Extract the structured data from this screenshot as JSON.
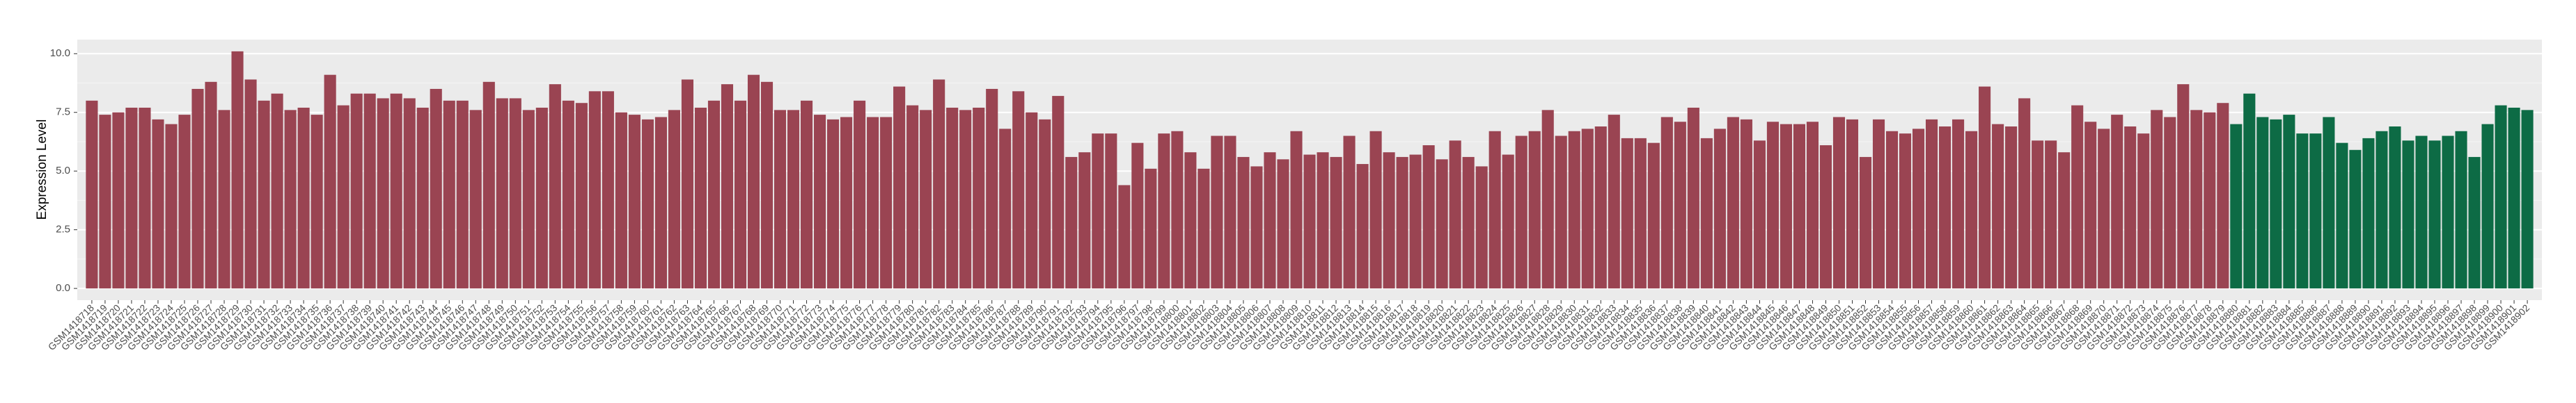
{
  "chart_data": {
    "type": "bar",
    "y_label": "Expression Level",
    "ylim": [
      -0.5,
      10.6
    ],
    "yticks": [
      {
        "value": 0,
        "label": "0.0"
      },
      2.5,
      {
        "value": 5,
        "label": "5.0"
      },
      7.5,
      {
        "value": 10,
        "label": "10.0"
      }
    ],
    "grid": true,
    "series": [
      {
        "color": "#9a4452",
        "categories": [
          "GSM1418718",
          "GSM1418719",
          "GSM1418720",
          "GSM1418721",
          "GSM1418722",
          "GSM1418723",
          "GSM1418724",
          "GSM1418725",
          "GSM1418726",
          "GSM1418727",
          "GSM1418728",
          "GSM1418729",
          "GSM1418730",
          "GSM1418731",
          "GSM1418732",
          "GSM1418733",
          "GSM1418734",
          "GSM1418735",
          "GSM1418736",
          "GSM1418737",
          "GSM1418738",
          "GSM1418739",
          "GSM1418740",
          "GSM1418741",
          "GSM1418742",
          "GSM1418743",
          "GSM1418744",
          "GSM1418745",
          "GSM1418746",
          "GSM1418747",
          "GSM1418748",
          "GSM1418749",
          "GSM1418750",
          "GSM1418751",
          "GSM1418752",
          "GSM1418753",
          "GSM1418754",
          "GSM1418755",
          "GSM1418756",
          "GSM1418757",
          "GSM1418758",
          "GSM1418759",
          "GSM1418760",
          "GSM1418761",
          "GSM1418762",
          "GSM1418763",
          "GSM1418764",
          "GSM1418765",
          "GSM1418766",
          "GSM1418767",
          "GSM1418768",
          "GSM1418769",
          "GSM1418770",
          "GSM1418771",
          "GSM1418772",
          "GSM1418773",
          "GSM1418774",
          "GSM1418775",
          "GSM1418776",
          "GSM1418777",
          "GSM1418778",
          "GSM1418779",
          "GSM1418780",
          "GSM1418781",
          "GSM1418782",
          "GSM1418783",
          "GSM1418784",
          "GSM1418785",
          "GSM1418786",
          "GSM1418787",
          "GSM1418788",
          "GSM1418789",
          "GSM1418790",
          "GSM1418791",
          "GSM1418792",
          "GSM1418793",
          "GSM1418794",
          "GSM1418795",
          "GSM1418796",
          "GSM1418797",
          "GSM1418798",
          "GSM1418799",
          "GSM1418800",
          "GSM1418801",
          "GSM1418802",
          "GSM1418803",
          "GSM1418804",
          "GSM1418805",
          "GSM1418806",
          "GSM1418807",
          "GSM1418808",
          "GSM1418809",
          "GSM1418810",
          "GSM1418811",
          "GSM1418812",
          "GSM1418813",
          "GSM1418814",
          "GSM1418815",
          "GSM1418816",
          "GSM1418817",
          "GSM1418818",
          "GSM1418819",
          "GSM1418820",
          "GSM1418821",
          "GSM1418822",
          "GSM1418823",
          "GSM1418824",
          "GSM1418825",
          "GSM1418826",
          "GSM1418827",
          "GSM1418828",
          "GSM1418829",
          "GSM1418830",
          "GSM1418831",
          "GSM1418832",
          "GSM1418833",
          "GSM1418834",
          "GSM1418835",
          "GSM1418836",
          "GSM1418837",
          "GSM1418838",
          "GSM1418839",
          "GSM1418840",
          "GSM1418841",
          "GSM1418842",
          "GSM1418843",
          "GSM1418844",
          "GSM1418845",
          "GSM1418846",
          "GSM1418847",
          "GSM1418848",
          "GSM1418849",
          "GSM1418850",
          "GSM1418851",
          "GSM1418852",
          "GSM1418853",
          "GSM1418854",
          "GSM1418855",
          "GSM1418856",
          "GSM1418857",
          "GSM1418858",
          "GSM1418859",
          "GSM1418860",
          "GSM1418861",
          "GSM1418862",
          "GSM1418863",
          "GSM1418864",
          "GSM1418865",
          "GSM1418866",
          "GSM1418867",
          "GSM1418868",
          "GSM1418869",
          "GSM1418870",
          "GSM1418871",
          "GSM1418872",
          "GSM1418873",
          "GSM1418874",
          "GSM1418875",
          "GSM1418876",
          "GSM1418877",
          "GSM1418878",
          "GSM1418879"
        ],
        "values": [
          8.0,
          7.4,
          7.5,
          7.7,
          7.7,
          7.2,
          7.0,
          7.4,
          8.5,
          8.8,
          7.6,
          10.1,
          8.9,
          8.0,
          8.3,
          7.6,
          7.7,
          7.4,
          9.1,
          7.8,
          8.3,
          8.3,
          8.1,
          8.3,
          8.1,
          7.7,
          8.5,
          8.0,
          8.0,
          7.6,
          8.8,
          8.1,
          8.1,
          7.6,
          7.7,
          8.7,
          8.0,
          7.9,
          8.4,
          8.4,
          7.5,
          7.4,
          7.2,
          7.3,
          7.6,
          8.9,
          7.7,
          8.0,
          8.7,
          8.0,
          9.1,
          8.8,
          7.6,
          7.6,
          8.0,
          7.4,
          7.2,
          7.3,
          8.0,
          7.3,
          7.3,
          8.6,
          7.8,
          7.6,
          8.9,
          7.7,
          7.6,
          7.7,
          8.5,
          6.8,
          8.4,
          7.5,
          7.2,
          8.2,
          5.6,
          5.8,
          6.6,
          6.6,
          4.4,
          6.2,
          5.1,
          6.6,
          6.7,
          5.8,
          5.1,
          6.5,
          6.5,
          5.6,
          5.2,
          5.8,
          5.5,
          6.7,
          5.7,
          5.8,
          5.6,
          6.5,
          5.3,
          6.7,
          5.8,
          5.6,
          5.7,
          6.1,
          5.5,
          6.3,
          5.6,
          5.2,
          6.7,
          5.7,
          6.5,
          6.7,
          7.6,
          6.5,
          6.7,
          6.8,
          6.9,
          7.4,
          6.4,
          6.4,
          6.2,
          7.3,
          7.1,
          7.7,
          6.4,
          6.8,
          7.3,
          7.2,
          6.3,
          7.1,
          7.0,
          7.0,
          7.1,
          6.1,
          7.3,
          7.2,
          5.6,
          7.2,
          6.7,
          6.6,
          6.8,
          7.2,
          6.9,
          7.2,
          6.7,
          8.6,
          7.0,
          6.9,
          8.1,
          6.3,
          6.3,
          5.8,
          7.8,
          7.1,
          6.8,
          7.4,
          6.9,
          6.6,
          7.6,
          7.3,
          8.7,
          7.6,
          7.5,
          7.9
        ]
      },
      {
        "color": "#0d6b45",
        "categories": [
          "GSM1418880",
          "GSM1418881",
          "GSM1418882",
          "GSM1418883",
          "GSM1418884",
          "GSM1418885",
          "GSM1418886",
          "GSM1418887",
          "GSM1418888",
          "GSM1418889",
          "GSM1418890",
          "GSM1418891",
          "GSM1418892",
          "GSM1418893",
          "GSM1418894",
          "GSM1418895",
          "GSM1418896",
          "GSM1418897",
          "GSM1418898",
          "GSM1418899",
          "GSM1418900",
          "GSM1418901",
          "GSM1418902"
        ],
        "values": [
          7.0,
          8.3,
          7.3,
          7.2,
          7.4,
          6.6,
          6.6,
          7.3,
          6.2,
          5.9,
          6.4,
          6.7,
          6.9,
          6.3,
          6.5,
          6.3,
          6.5,
          6.7,
          5.6,
          7.0,
          7.8,
          7.7,
          7.6
        ]
      }
    ]
  }
}
